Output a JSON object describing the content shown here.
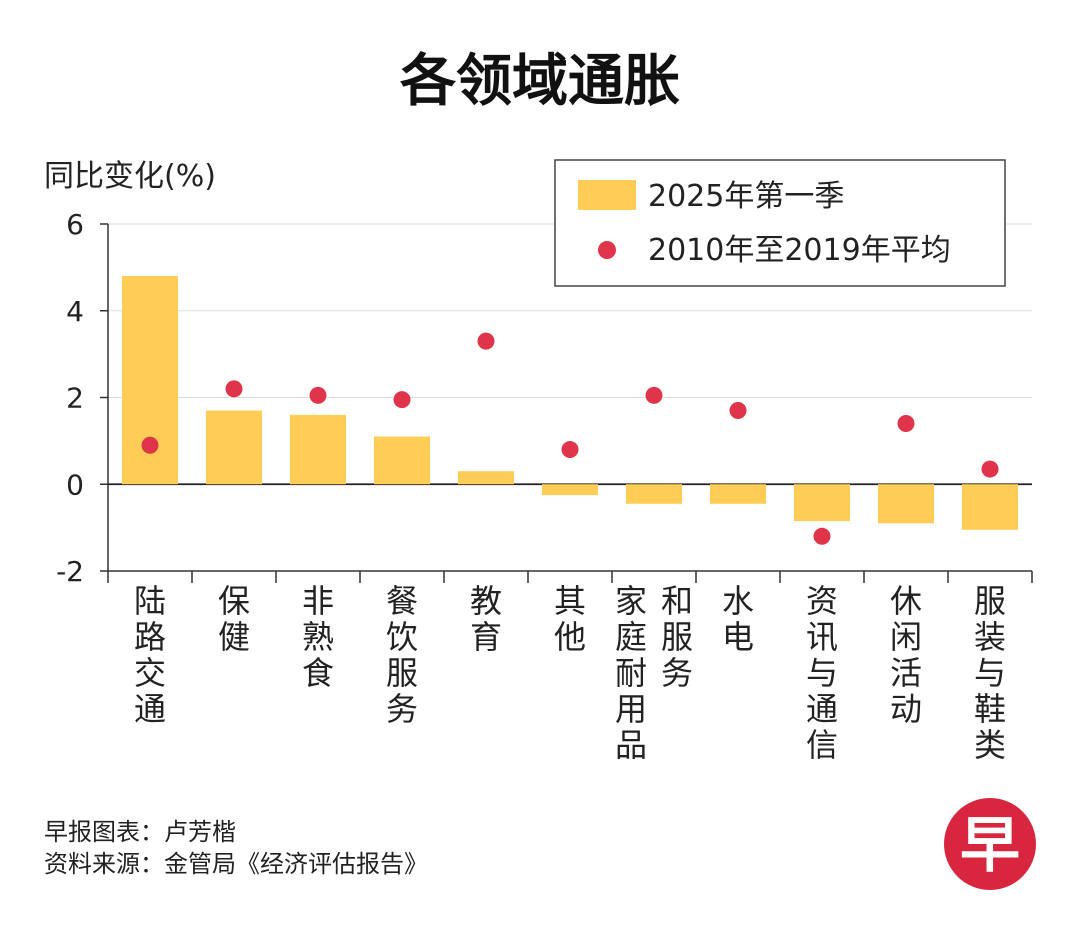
{
  "chart_data": {
    "type": "bar",
    "title": "各领域通胀",
    "ylabel": "同比变化(%)",
    "ylim": [
      -2,
      6
    ],
    "yticks": [
      6,
      4,
      2,
      0,
      -2
    ],
    "grid": true,
    "legend_position": "top-right",
    "categories": [
      [
        "陆路交通"
      ],
      [
        "保健"
      ],
      [
        "非熟食"
      ],
      [
        "餐饮服务"
      ],
      [
        "教育"
      ],
      [
        "其他"
      ],
      [
        "家庭耐用品",
        "和服务"
      ],
      [
        "水电"
      ],
      [
        "资讯与通信"
      ],
      [
        "休闲活动"
      ],
      [
        "服装与鞋类"
      ]
    ],
    "series": [
      {
        "name": "2025年第一季",
        "kind": "bar",
        "color": "#FFCC55",
        "values": [
          4.8,
          1.7,
          1.6,
          1.1,
          0.3,
          -0.25,
          -0.45,
          -0.45,
          -0.85,
          -0.9,
          -1.05
        ]
      },
      {
        "name": "2010年至2019年平均",
        "kind": "dot",
        "color": "#E0344B",
        "values": [
          0.9,
          2.2,
          2.05,
          1.95,
          3.3,
          0.8,
          2.05,
          1.7,
          -1.2,
          1.4,
          0.35
        ]
      }
    ]
  },
  "footer": {
    "line1": "早报图表：卢芳楷",
    "line2": "资料来源：金管局《经济评估报告》"
  },
  "logo": {
    "char": "早",
    "color": "#D7263D"
  }
}
